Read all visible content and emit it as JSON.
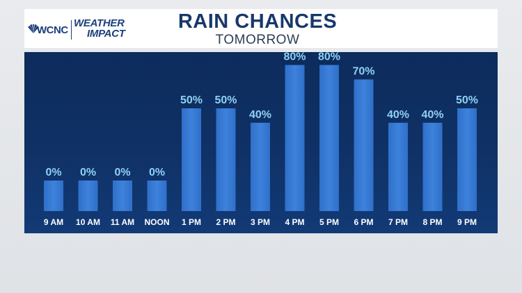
{
  "branding": {
    "station": "WCNC",
    "program_top": "WEATHER",
    "program_bottom": "IMPACT"
  },
  "header": {
    "title": "RAIN CHANCES",
    "subtitle": "TOMORROW"
  },
  "colors": {
    "bar": "#2f6fc9",
    "bar_highlight": "#3d82dc",
    "value_label": "#8fd0f5",
    "panel": "#0f3166",
    "title": "#17386b"
  },
  "chart_data": {
    "type": "bar",
    "title": "RAIN CHANCES",
    "subtitle": "TOMORROW",
    "categories": [
      "9 AM",
      "10 AM",
      "11 AM",
      "NOON",
      "1 PM",
      "2 PM",
      "3 PM",
      "4 PM",
      "5 PM",
      "6 PM",
      "7 PM",
      "8 PM",
      "9 PM"
    ],
    "values": [
      0,
      0,
      0,
      0,
      50,
      50,
      40,
      80,
      80,
      70,
      40,
      40,
      50
    ],
    "value_labels": [
      "0%",
      "0%",
      "0%",
      "0%",
      "50%",
      "50%",
      "40%",
      "80%",
      "80%",
      "70%",
      "40%",
      "40%",
      "50%"
    ],
    "unit": "%",
    "ylim": [
      0,
      100
    ],
    "grid": false,
    "legend": "none"
  }
}
